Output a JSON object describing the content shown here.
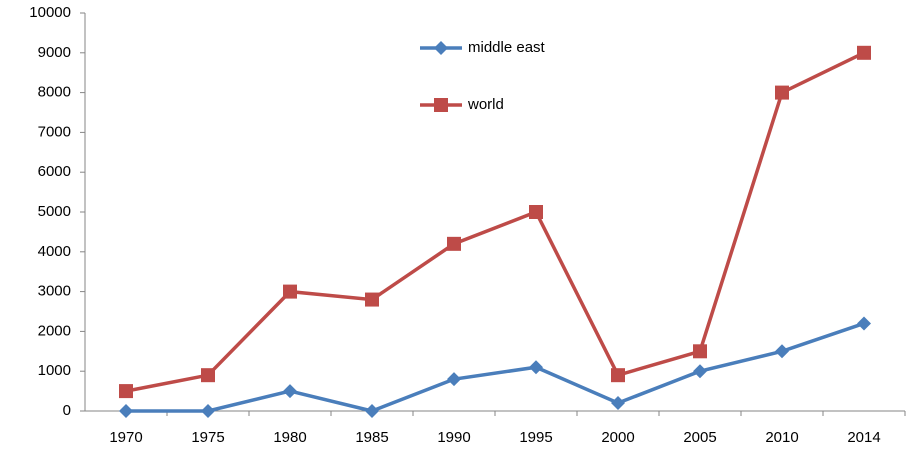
{
  "chart_data": {
    "type": "line",
    "categories": [
      "1970",
      "1975",
      "1980",
      "1985",
      "1990",
      "1995",
      "2000",
      "2005",
      "2010",
      "2014"
    ],
    "series": [
      {
        "name": "middle east",
        "color": "#4a7ebb",
        "marker": "diamond",
        "values": [
          0,
          0,
          500,
          0,
          800,
          1100,
          200,
          1000,
          1500,
          2200
        ]
      },
      {
        "name": "world",
        "color": "#be4b48",
        "marker": "square",
        "values": [
          500,
          900,
          3000,
          2800,
          4200,
          5000,
          900,
          1500,
          8000,
          9000
        ]
      }
    ],
    "ylim": [
      0,
      10000
    ],
    "yticks": [
      0,
      1000,
      2000,
      3000,
      4000,
      5000,
      6000,
      7000,
      8000,
      9000,
      10000
    ],
    "grid": false,
    "legend": "top"
  }
}
